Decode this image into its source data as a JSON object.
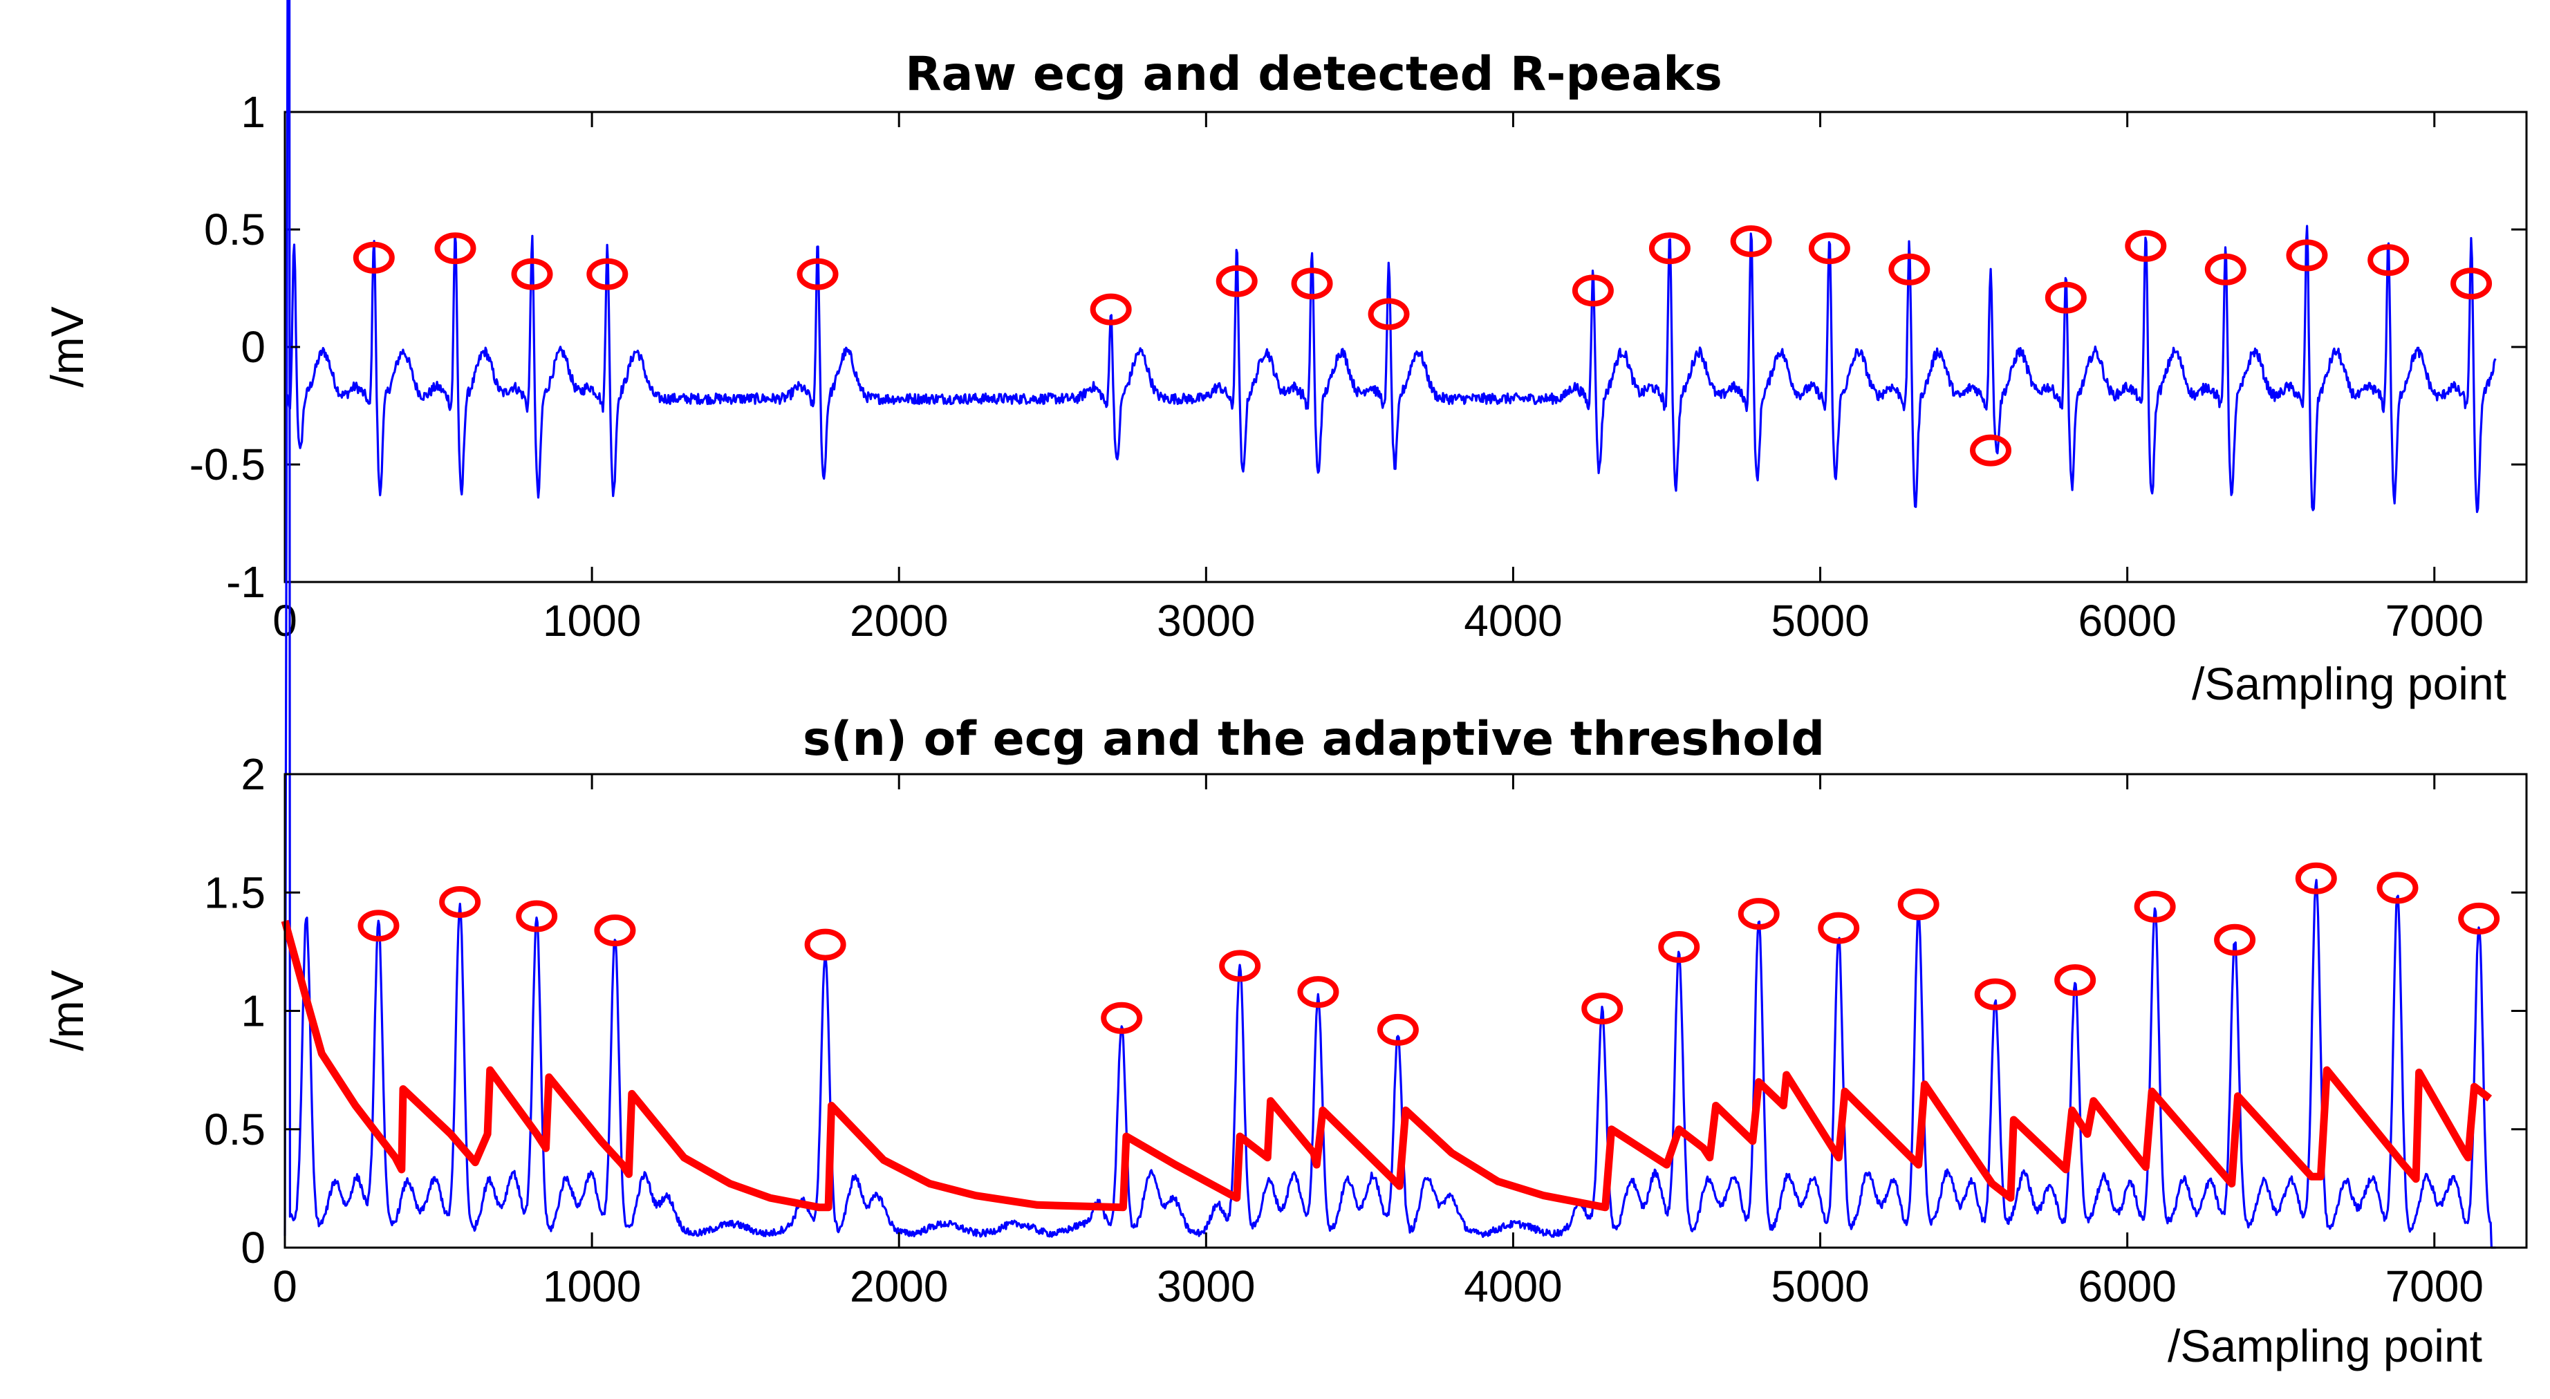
{
  "chart_data": [
    {
      "type": "line",
      "title": "Raw ecg and detected R-peaks",
      "xlabel": "/Sampling point",
      "ylabel": "/mV",
      "xlim": [
        0,
        7300
      ],
      "ylim": [
        -1,
        1
      ],
      "xticks": [
        0,
        1000,
        2000,
        3000,
        4000,
        5000,
        6000,
        7000
      ],
      "xtick_labels": [
        "0",
        "1000",
        "2000",
        "3000",
        "4000",
        "5000",
        "6000",
        "7000"
      ],
      "yticks": [
        -1,
        -0.5,
        0,
        0.5,
        1
      ],
      "ytick_labels": [
        "-1",
        "-0.5",
        "0",
        "0.5",
        "1"
      ],
      "baseline": -0.22,
      "series": [
        {
          "name": "ecg",
          "color": "#0000ff",
          "kind": "ecg"
        },
        {
          "name": "R-peaks",
          "color": "#ff0000",
          "kind": "markers",
          "points": [
            [
              290,
              0.38
            ],
            [
              555,
              0.42
            ],
            [
              805,
              0.31
            ],
            [
              1050,
              0.31
            ],
            [
              1735,
              0.31
            ],
            [
              2690,
              0.16
            ],
            [
              3100,
              0.28
            ],
            [
              3345,
              0.27
            ],
            [
              3595,
              0.14
            ],
            [
              4260,
              0.24
            ],
            [
              4510,
              0.42
            ],
            [
              4775,
              0.45
            ],
            [
              5030,
              0.42
            ],
            [
              5290,
              0.33
            ],
            [
              5555,
              -0.44
            ],
            [
              5800,
              0.21
            ],
            [
              6060,
              0.43
            ],
            [
              6320,
              0.33
            ],
            [
              6585,
              0.39
            ],
            [
              6850,
              0.37
            ],
            [
              7120,
              0.27
            ]
          ]
        }
      ],
      "peaks": [
        {
          "x": 30,
          "y": 0.45,
          "qs": -0.45
        },
        {
          "x": 290,
          "y": 0.48,
          "qs": -0.63
        },
        {
          "x": 555,
          "y": 0.5,
          "qs": -0.64
        },
        {
          "x": 805,
          "y": 0.47,
          "qs": -0.64
        },
        {
          "x": 1050,
          "y": 0.46,
          "qs": -0.63
        },
        {
          "x": 1735,
          "y": 0.44,
          "qs": -0.57
        },
        {
          "x": 2690,
          "y": 0.15,
          "qs": -0.5
        },
        {
          "x": 3100,
          "y": 0.42,
          "qs": -0.55
        },
        {
          "x": 3345,
          "y": 0.42,
          "qs": -0.55
        },
        {
          "x": 3595,
          "y": 0.38,
          "qs": -0.52
        },
        {
          "x": 4260,
          "y": 0.35,
          "qs": -0.53
        },
        {
          "x": 4510,
          "y": 0.5,
          "qs": -0.6
        },
        {
          "x": 4775,
          "y": 0.5,
          "qs": -0.58
        },
        {
          "x": 5030,
          "y": 0.48,
          "qs": -0.57
        },
        {
          "x": 5290,
          "y": 0.46,
          "qs": -0.68
        },
        {
          "x": 5555,
          "y": 0.35,
          "qs": -0.45
        },
        {
          "x": 5800,
          "y": 0.3,
          "qs": -0.6
        },
        {
          "x": 6060,
          "y": 0.5,
          "qs": -0.64
        },
        {
          "x": 6320,
          "y": 0.45,
          "qs": -0.65
        },
        {
          "x": 6585,
          "y": 0.53,
          "qs": -0.72
        },
        {
          "x": 6850,
          "y": 0.47,
          "qs": -0.66
        },
        {
          "x": 7120,
          "y": 0.46,
          "qs": -0.73
        }
      ]
    },
    {
      "type": "line",
      "title": "s(n) of ecg and the adaptive threshold",
      "xlabel": "/Sampling point",
      "ylabel": "/mV",
      "xlim": [
        0,
        7300
      ],
      "ylim": [
        0,
        2
      ],
      "xticks": [
        0,
        1000,
        2000,
        3000,
        4000,
        5000,
        6000,
        7000
      ],
      "xtick_labels": [
        "0",
        "1000",
        "2000",
        "3000",
        "4000",
        "5000",
        "6000",
        "7000"
      ],
      "yticks": [
        0,
        0.5,
        1,
        1.5,
        2
      ],
      "ytick_labels": [
        "0",
        "0.5",
        "1",
        "1.5",
        "2"
      ],
      "series": [
        {
          "name": "s(n)",
          "color": "#0000ff",
          "kind": "envelope"
        },
        {
          "name": "adaptive threshold",
          "color": "#ff0000",
          "kind": "threshold",
          "points": [
            [
              0,
              1.38
            ],
            [
              70,
              1.05
            ],
            [
              120,
              0.82
            ],
            [
              230,
              0.6
            ],
            [
              360,
              0.38
            ],
            [
              380,
              0.33
            ],
            [
              385,
              0.67
            ],
            [
              540,
              0.48
            ],
            [
              580,
              0.42
            ],
            [
              620,
              0.36
            ],
            [
              660,
              0.48
            ],
            [
              668,
              0.75
            ],
            [
              820,
              0.48
            ],
            [
              850,
              0.42
            ],
            [
              860,
              0.72
            ],
            [
              1030,
              0.45
            ],
            [
              1100,
              0.35
            ],
            [
              1120,
              0.31
            ],
            [
              1130,
              0.65
            ],
            [
              1300,
              0.38
            ],
            [
              1450,
              0.27
            ],
            [
              1580,
              0.21
            ],
            [
              1740,
              0.17
            ],
            [
              1770,
              0.17
            ],
            [
              1780,
              0.6
            ],
            [
              1950,
              0.37
            ],
            [
              2100,
              0.27
            ],
            [
              2250,
              0.22
            ],
            [
              2450,
              0.18
            ],
            [
              2730,
              0.17
            ],
            [
              2740,
              0.47
            ],
            [
              2900,
              0.35
            ],
            [
              3100,
              0.21
            ],
            [
              3110,
              0.47
            ],
            [
              3200,
              0.38
            ],
            [
              3210,
              0.62
            ],
            [
              3350,
              0.4
            ],
            [
              3360,
              0.35
            ],
            [
              3380,
              0.58
            ],
            [
              3600,
              0.3
            ],
            [
              3630,
              0.26
            ],
            [
              3650,
              0.58
            ],
            [
              3800,
              0.4
            ],
            [
              3950,
              0.28
            ],
            [
              4100,
              0.22
            ],
            [
              4300,
              0.17
            ],
            [
              4320,
              0.5
            ],
            [
              4500,
              0.35
            ],
            [
              4540,
              0.5
            ],
            [
              4620,
              0.42
            ],
            [
              4640,
              0.38
            ],
            [
              4660,
              0.6
            ],
            [
              4780,
              0.45
            ],
            [
              4800,
              0.7
            ],
            [
              4880,
              0.6
            ],
            [
              4890,
              0.73
            ],
            [
              5060,
              0.38
            ],
            [
              5080,
              0.66
            ],
            [
              5320,
              0.35
            ],
            [
              5340,
              0.69
            ],
            [
              5560,
              0.27
            ],
            [
              5620,
              0.21
            ],
            [
              5630,
              0.54
            ],
            [
              5800,
              0.33
            ],
            [
              5820,
              0.58
            ],
            [
              5870,
              0.48
            ],
            [
              5890,
              0.62
            ],
            [
              6060,
              0.34
            ],
            [
              6080,
              0.66
            ],
            [
              6340,
              0.27
            ],
            [
              6360,
              0.64
            ],
            [
              6600,
              0.3
            ],
            [
              6630,
              0.3
            ],
            [
              6650,
              0.75
            ],
            [
              6900,
              0.35
            ],
            [
              6940,
              0.29
            ],
            [
              6950,
              0.74
            ],
            [
              7100,
              0.4
            ],
            [
              7110,
              0.38
            ],
            [
              7130,
              0.68
            ],
            [
              7180,
              0.63
            ]
          ]
        },
        {
          "name": "detected peaks",
          "color": "#ff0000",
          "kind": "markers",
          "points": [
            [
              305,
              1.36
            ],
            [
              570,
              1.46
            ],
            [
              820,
              1.4
            ],
            [
              1075,
              1.34
            ],
            [
              1760,
              1.28
            ],
            [
              2725,
              0.97
            ],
            [
              3110,
              1.19
            ],
            [
              3365,
              1.08
            ],
            [
              3625,
              0.92
            ],
            [
              4290,
              1.01
            ],
            [
              4540,
              1.27
            ],
            [
              4800,
              1.41
            ],
            [
              5060,
              1.35
            ],
            [
              5320,
              1.45
            ],
            [
              5570,
              1.07
            ],
            [
              5830,
              1.13
            ],
            [
              6090,
              1.44
            ],
            [
              6350,
              1.3
            ],
            [
              6615,
              1.56
            ],
            [
              6880,
              1.52
            ],
            [
              7145,
              1.39
            ]
          ]
        }
      ],
      "peaks": [
        {
          "x": 70,
          "y": 1.4
        },
        {
          "x": 305,
          "y": 1.37
        },
        {
          "x": 570,
          "y": 1.46
        },
        {
          "x": 820,
          "y": 1.41
        },
        {
          "x": 1075,
          "y": 1.34
        },
        {
          "x": 1760,
          "y": 1.27
        },
        {
          "x": 2725,
          "y": 0.98
        },
        {
          "x": 3110,
          "y": 1.2
        },
        {
          "x": 3365,
          "y": 1.08
        },
        {
          "x": 3625,
          "y": 0.93
        },
        {
          "x": 4290,
          "y": 1.02
        },
        {
          "x": 4540,
          "y": 1.27
        },
        {
          "x": 4800,
          "y": 1.42
        },
        {
          "x": 5060,
          "y": 1.35
        },
        {
          "x": 5320,
          "y": 1.45
        },
        {
          "x": 5570,
          "y": 1.07
        },
        {
          "x": 5830,
          "y": 1.13
        },
        {
          "x": 6090,
          "y": 1.44
        },
        {
          "x": 6350,
          "y": 1.3
        },
        {
          "x": 6615,
          "y": 1.57
        },
        {
          "x": 6880,
          "y": 1.53
        },
        {
          "x": 7145,
          "y": 1.4
        }
      ]
    }
  ]
}
